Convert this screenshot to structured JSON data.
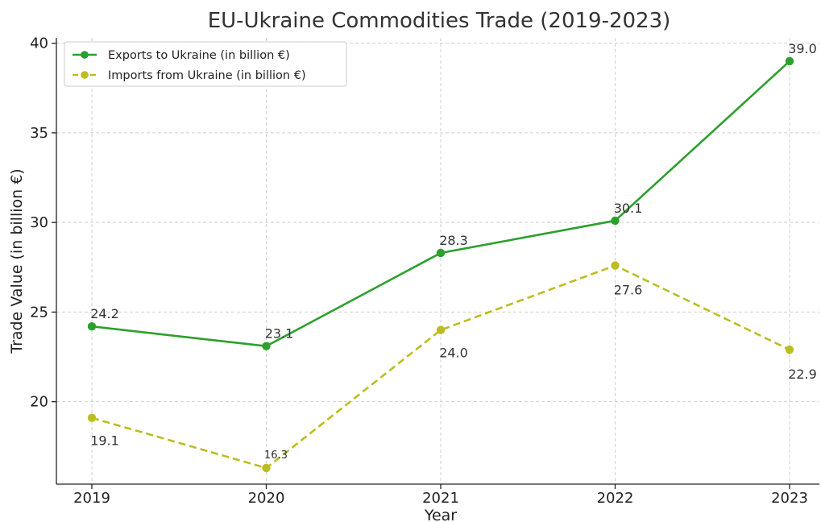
{
  "chart_data": {
    "type": "line",
    "title": "EU-Ukraine Commodities Trade (2019-2023)",
    "xlabel": "Year",
    "ylabel": "Trade Value (in billion €)",
    "categories": [
      "2019",
      "2020",
      "2021",
      "2022",
      "2023"
    ],
    "ylim": [
      15.4,
      40.3
    ],
    "yticks": [
      20,
      25,
      30,
      35,
      40
    ],
    "grid": true,
    "legend_position": "top-left",
    "series": [
      {
        "name": "Exports to Ukraine (in billion €)",
        "values": [
          24.2,
          23.1,
          28.3,
          30.1,
          39.0
        ],
        "labels": [
          "24.2",
          "23.1",
          "28.3",
          "30.1",
          "39.0"
        ],
        "color": "#2ca02c",
        "line_style": "solid",
        "marker": "circle"
      },
      {
        "name": "Imports from Ukraine (in billion €)",
        "values": [
          19.1,
          16.3,
          24.0,
          27.6,
          22.9
        ],
        "labels": [
          "19.1",
          "16.3",
          "24.0",
          "27.6",
          "22.9"
        ],
        "color": "#bcbd22",
        "line_style": "dashed",
        "marker": "circle"
      }
    ]
  }
}
